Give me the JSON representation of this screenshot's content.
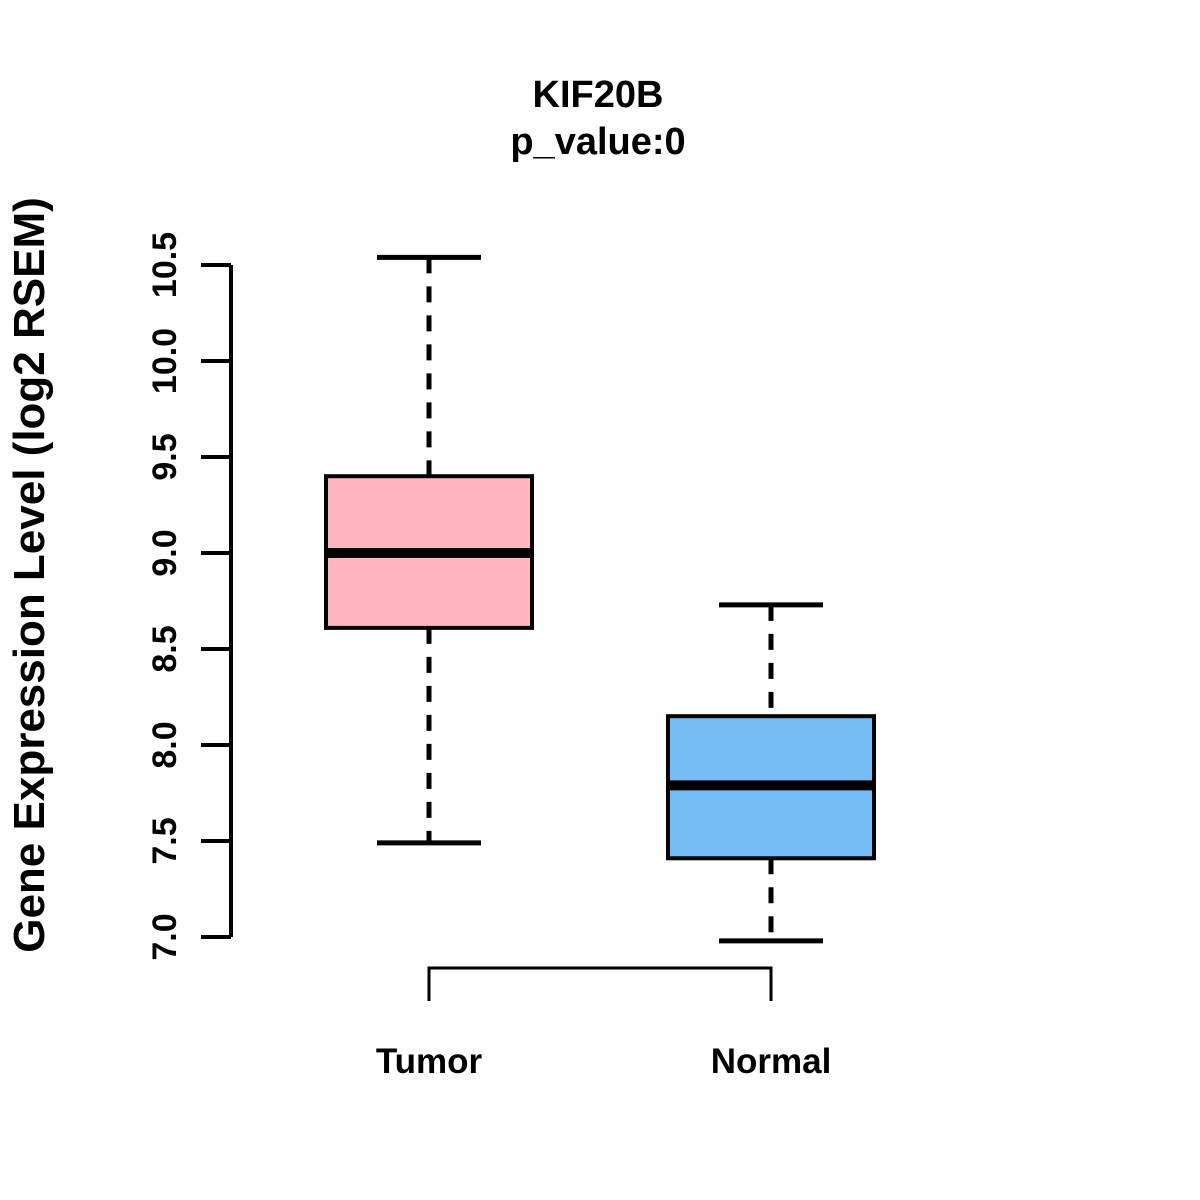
{
  "chart_data": {
    "type": "boxplot",
    "title": "KIF20B",
    "subtitle": "p_value:0",
    "ylabel": "Gene Expression Level (log2 RSEM)",
    "xlabel": "",
    "ylim": [
      7.0,
      10.5
    ],
    "yticks": [
      7.0,
      7.5,
      8.0,
      8.5,
      9.0,
      9.5,
      10.0,
      10.5
    ],
    "grid": "off",
    "legend": "none",
    "groups": [
      {
        "label": "Tumor",
        "color": "#FFB6C1",
        "whisker_low": 7.49,
        "q1": 8.61,
        "median": 9.0,
        "q3": 9.4,
        "whisker_high": 10.54
      },
      {
        "label": "Normal",
        "color": "#74BDF7",
        "whisker_low": 6.98,
        "q1": 7.41,
        "median": 7.79,
        "q3": 8.15,
        "whisker_high": 8.73
      }
    ],
    "comparison_bracket": {
      "between": [
        "Tumor",
        "Normal"
      ],
      "annotation": ""
    },
    "colors": {
      "foreground": "#000000",
      "background": "#ffffff",
      "tumor_box": "#FFB6C1",
      "normal_box": "#74BDF7"
    }
  }
}
